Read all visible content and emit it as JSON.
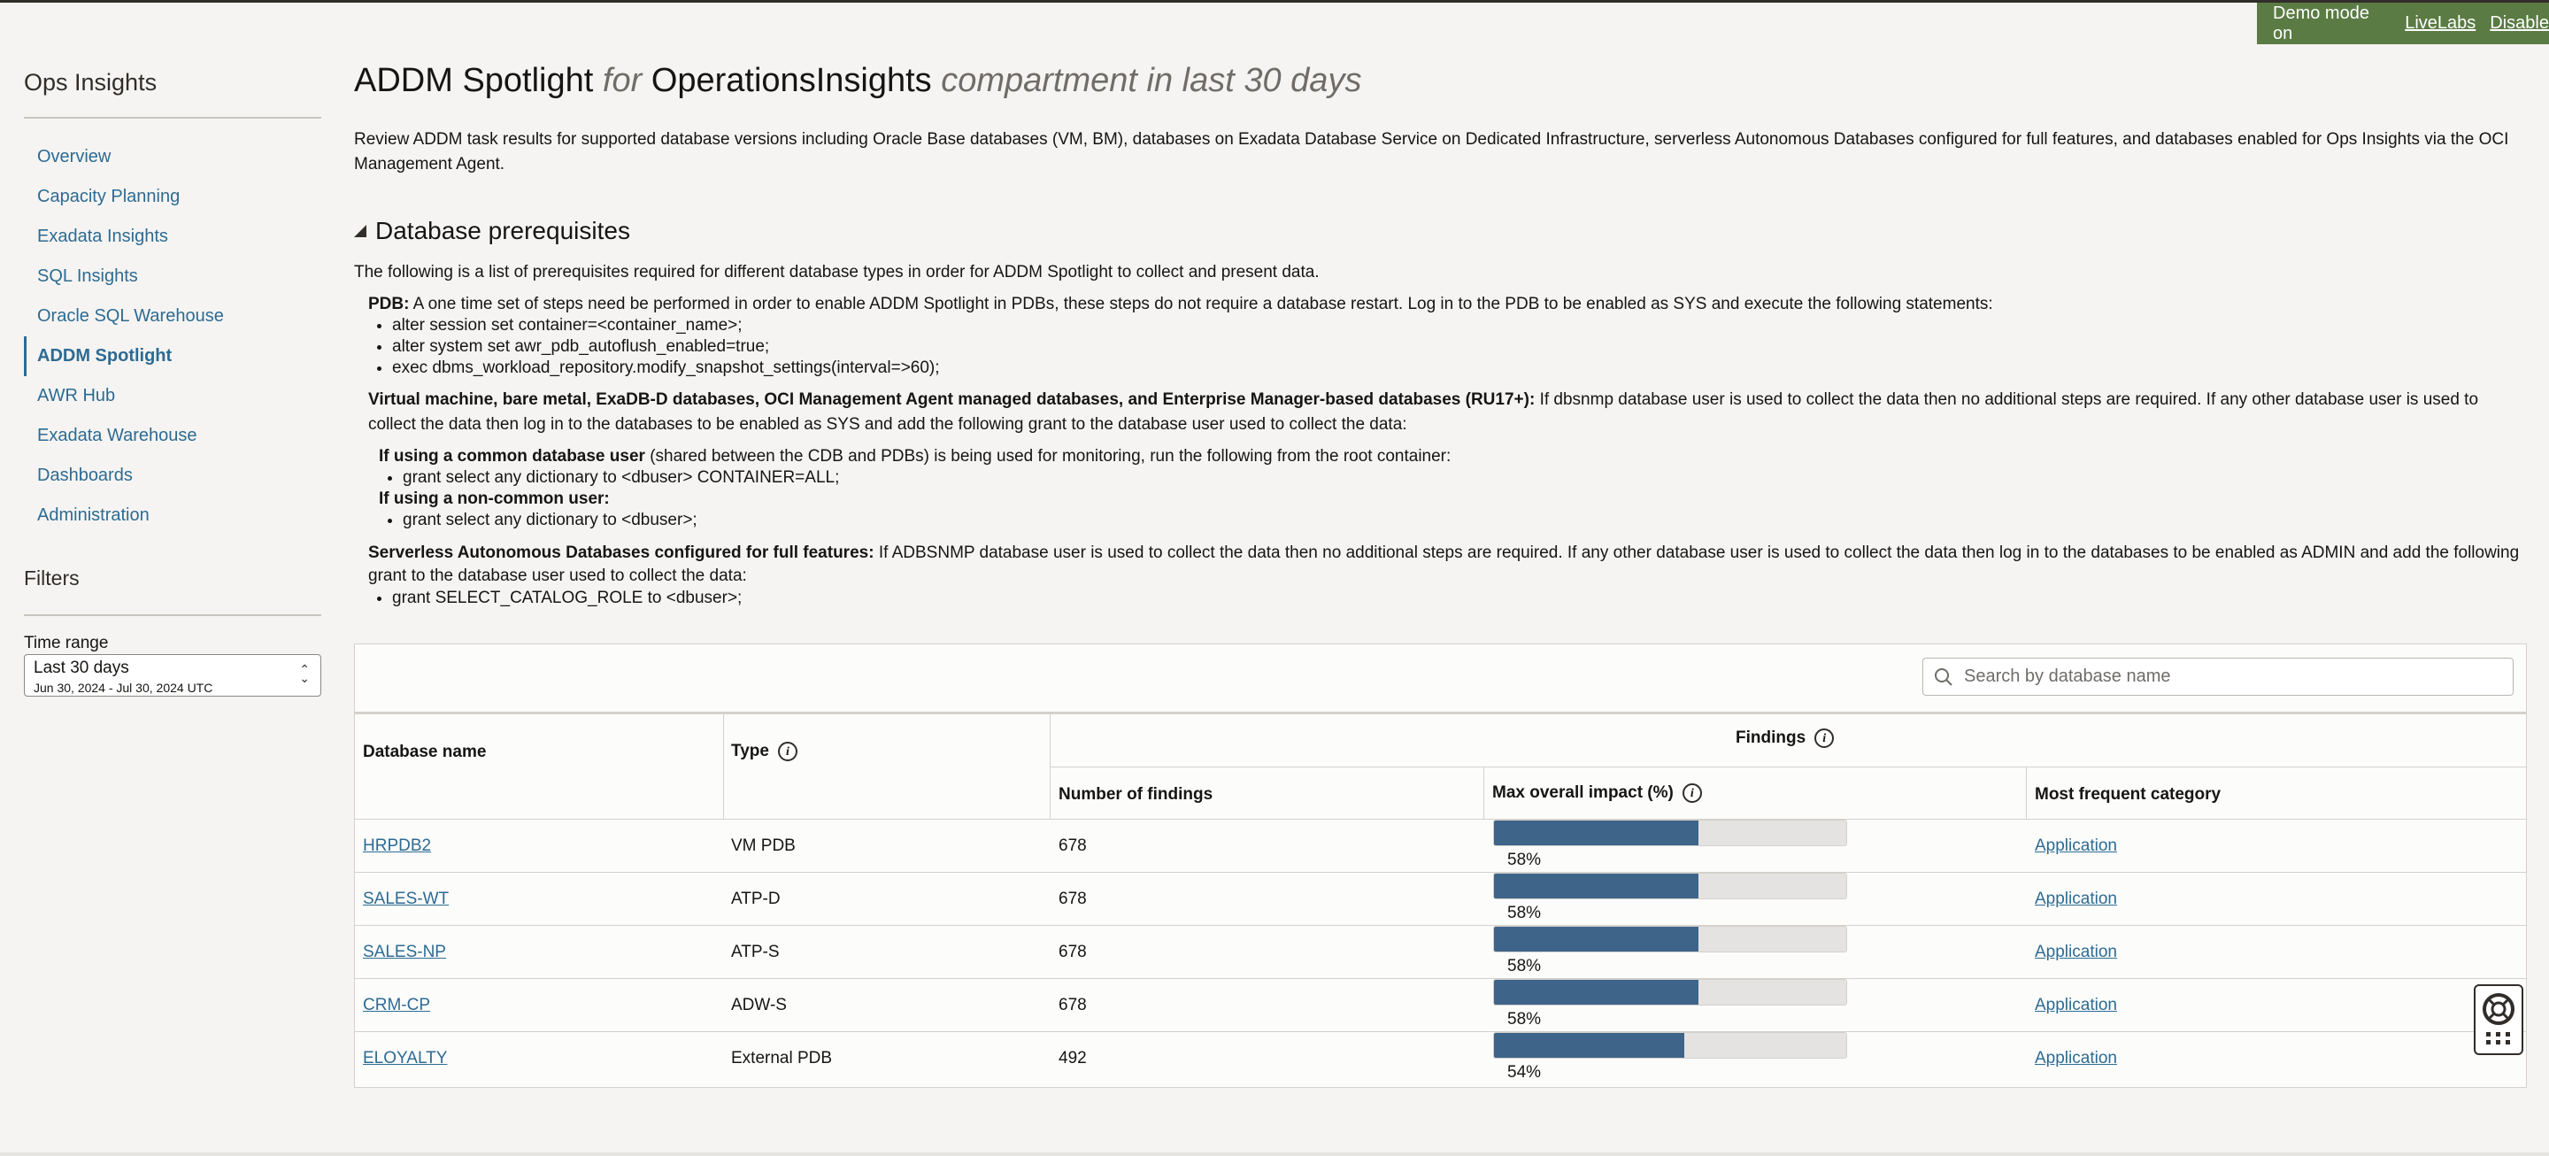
{
  "demo": {
    "text": "Demo mode on",
    "livelabs": "LiveLabs",
    "disable": "Disable"
  },
  "nav": {
    "title": "Ops Insights",
    "items": [
      {
        "label": "Overview"
      },
      {
        "label": "Capacity Planning"
      },
      {
        "label": "Exadata Insights"
      },
      {
        "label": "SQL Insights"
      },
      {
        "label": "Oracle SQL Warehouse"
      },
      {
        "label": "ADDM Spotlight"
      },
      {
        "label": "AWR Hub"
      },
      {
        "label": "Exadata Warehouse"
      },
      {
        "label": "Dashboards"
      },
      {
        "label": "Administration"
      }
    ],
    "active": "ADDM Spotlight"
  },
  "filters": {
    "title": "Filters",
    "time_range_label": "Time range",
    "time_range_value": "Last 30 days",
    "time_range_dates": "Jun 30, 2024 - Jul 30, 2024 UTC"
  },
  "page": {
    "title_main": "ADDM Spotlight",
    "title_for": "for",
    "title_compartment": "OperationsInsights",
    "title_suffix": "compartment in last 30 days",
    "description": "Review ADDM task results for supported database versions including Oracle Base databases (VM, BM), databases on Exadata Database Service on Dedicated Infrastructure, serverless Autonomous Databases configured for full features, and databases enabled for Ops Insights via the OCI Management Agent."
  },
  "prereq": {
    "heading": "Database prerequisites",
    "intro": "The following is a list of prerequisites required for different database types in order for ADDM Spotlight to collect and present data.",
    "pdb_label": "PDB:",
    "pdb_text": " A one time set of steps need be performed in order to enable ADDM Spotlight in PDBs, these steps do not require a database restart. Log in to the PDB to be enabled as SYS and execute the following statements:",
    "pdb_steps": [
      "alter session set container=<container_name>;",
      "alter system set awr_pdb_autoflush_enabled=true;",
      "exec dbms_workload_repository.modify_snapshot_settings(interval=>60);"
    ],
    "vm_label": "Virtual machine, bare metal, ExaDB-D databases, OCI Management Agent managed databases, and Enterprise Manager-based databases (RU17+):",
    "vm_text": " If dbsnmp database user is used to collect the data then no additional steps are required. If any other database user is used to collect the data then log in to the databases to be enabled as SYS and add the following grant to the database user used to collect the data:",
    "common_label": "If using a common database user",
    "common_text": " (shared between the CDB and PDBs) is being used for monitoring, run the following from the root container:",
    "common_step": "grant select any dictionary to <dbuser> CONTAINER=ALL;",
    "noncommon_label": "If using a non-common user:",
    "noncommon_step": "grant select any dictionary to <dbuser>;",
    "sl_label": "Serverless Autonomous Databases configured for full features:",
    "sl_text": " If ADBSNMP database user is used to collect the data then no additional steps are required. If any other database user is used to collect the data then log in to the databases to be enabled as ADMIN and add the following grant to the database user used to collect the data:",
    "sl_step": "grant SELECT_CATALOG_ROLE to <dbuser>;"
  },
  "table": {
    "search_placeholder": "Search by database name",
    "headers": {
      "db_name": "Database name",
      "type": "Type",
      "findings": "Findings",
      "num_findings": "Number of findings",
      "max_impact": "Max overall impact (%)",
      "most_frequent": "Most frequent category"
    },
    "rows": [
      {
        "name": "HRPDB2",
        "type": "VM PDB",
        "findings": "678",
        "impact_pct": 58,
        "impact_label": "58%",
        "category": "Application"
      },
      {
        "name": "SALES-WT",
        "type": "ATP-D",
        "findings": "678",
        "impact_pct": 58,
        "impact_label": "58%",
        "category": "Application"
      },
      {
        "name": "SALES-NP",
        "type": "ATP-S",
        "findings": "678",
        "impact_pct": 58,
        "impact_label": "58%",
        "category": "Application"
      },
      {
        "name": "CRM-CP",
        "type": "ADW-S",
        "findings": "678",
        "impact_pct": 58,
        "impact_label": "58%",
        "category": "Application"
      },
      {
        "name": "ELOYALTY",
        "type": "External PDB",
        "findings": "492",
        "impact_pct": 54,
        "impact_label": "54%",
        "category": "Application"
      }
    ]
  },
  "colors": {
    "accent": "#2d6b92",
    "bar_fill": "#3e6589",
    "demo_bg": "#5a7b43"
  },
  "icons": [
    "search-icon",
    "info-icon",
    "chevron-updown-icon",
    "collapse-triangle-icon",
    "help-lifebuoy-icon",
    "grid-dots-icon"
  ]
}
